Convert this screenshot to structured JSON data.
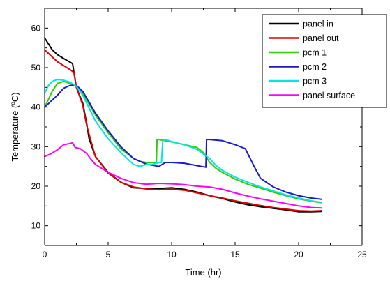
{
  "chart_data": {
    "type": "line",
    "title": "",
    "xlabel": "Time (hr)",
    "ylabel_parts": [
      "Temperature (",
      "o",
      "C)"
    ],
    "xlim": [
      0,
      25
    ],
    "ylim": [
      5,
      65
    ],
    "xticks": [
      0,
      5,
      10,
      15,
      20,
      25
    ],
    "yticks": [
      10,
      20,
      30,
      40,
      50,
      60
    ],
    "grid": false,
    "legend_position": "top-right",
    "series": [
      {
        "name": "panel in",
        "color": "#000000",
        "points": [
          [
            0,
            57.5
          ],
          [
            0.3,
            56
          ],
          [
            0.6,
            54.5
          ],
          [
            1,
            53.3
          ],
          [
            1.5,
            52.3
          ],
          [
            2,
            51.4
          ],
          [
            2.2,
            51
          ],
          [
            2.5,
            45
          ],
          [
            3,
            41
          ],
          [
            3.3,
            36
          ],
          [
            3.5,
            32
          ],
          [
            4,
            27.5
          ],
          [
            5,
            23.5
          ],
          [
            6,
            21
          ],
          [
            7,
            19.6
          ],
          [
            8,
            19.4
          ],
          [
            9,
            19.4
          ],
          [
            10,
            19.6
          ],
          [
            11,
            19.2
          ],
          [
            12,
            18.5
          ],
          [
            13,
            17.6
          ],
          [
            14,
            16.9
          ],
          [
            15,
            16
          ],
          [
            16,
            15.3
          ],
          [
            17,
            14.8
          ],
          [
            18,
            14.4
          ],
          [
            19,
            14
          ],
          [
            20,
            13.5
          ],
          [
            21,
            13.5
          ],
          [
            21.8,
            13.6
          ]
        ]
      },
      {
        "name": "panel out",
        "color": "#e00000",
        "points": [
          [
            0,
            54.5
          ],
          [
            0.5,
            53
          ],
          [
            1,
            51.5
          ],
          [
            1.5,
            50.5
          ],
          [
            2,
            49.5
          ],
          [
            2.3,
            48.8
          ],
          [
            2.5,
            45
          ],
          [
            3,
            40.5
          ],
          [
            3.3,
            35.5
          ],
          [
            3.6,
            32
          ],
          [
            4,
            27.5
          ],
          [
            5,
            23.3
          ],
          [
            6,
            21
          ],
          [
            7,
            19.8
          ],
          [
            8,
            19.3
          ],
          [
            9,
            19.1
          ],
          [
            10,
            19.2
          ],
          [
            11,
            19
          ],
          [
            12,
            18.3
          ],
          [
            13,
            17.6
          ],
          [
            14,
            17
          ],
          [
            15,
            16.3
          ],
          [
            16,
            15.7
          ],
          [
            17,
            15.1
          ],
          [
            18,
            14.6
          ],
          [
            19,
            14.2
          ],
          [
            20,
            13.8
          ],
          [
            21,
            13.7
          ],
          [
            21.8,
            13.8
          ]
        ]
      },
      {
        "name": "pcm 1",
        "color": "#33cc00",
        "points": [
          [
            0,
            40
          ],
          [
            0.3,
            42
          ],
          [
            0.6,
            44
          ],
          [
            1,
            46
          ],
          [
            1.5,
            46.5
          ],
          [
            2,
            46
          ],
          [
            2.5,
            45.5
          ],
          [
            3,
            43.5
          ],
          [
            4,
            38
          ],
          [
            5,
            33.5
          ],
          [
            6,
            29.5
          ],
          [
            7,
            27
          ],
          [
            7.5,
            26.3
          ],
          [
            8,
            26
          ],
          [
            8.5,
            26
          ],
          [
            8.8,
            26
          ],
          [
            8.85,
            31.8
          ],
          [
            9,
            31.8
          ],
          [
            10,
            31.2
          ],
          [
            11,
            30.5
          ],
          [
            12,
            29.8
          ],
          [
            12.5,
            28.5
          ],
          [
            13,
            26
          ],
          [
            13.5,
            24.5
          ],
          [
            14,
            23.5
          ],
          [
            15,
            21.8
          ],
          [
            16,
            20.5
          ],
          [
            17,
            19.5
          ],
          [
            18,
            18.5
          ],
          [
            19,
            17.6
          ],
          [
            20,
            16.8
          ],
          [
            21,
            16.2
          ],
          [
            21.8,
            15.8
          ]
        ]
      },
      {
        "name": "pcm 2",
        "color": "#1a1acc",
        "points": [
          [
            0,
            40
          ],
          [
            0.5,
            41.5
          ],
          [
            1,
            43
          ],
          [
            1.5,
            44.8
          ],
          [
            2,
            45.5
          ],
          [
            2.5,
            45.5
          ],
          [
            3,
            44
          ],
          [
            4,
            38.5
          ],
          [
            5,
            34
          ],
          [
            6,
            30
          ],
          [
            7,
            27
          ],
          [
            8,
            25.6
          ],
          [
            9,
            25
          ],
          [
            9.5,
            26
          ],
          [
            10,
            26
          ],
          [
            11,
            25.8
          ],
          [
            12,
            25.2
          ],
          [
            12.7,
            24.8
          ],
          [
            12.75,
            31.8
          ],
          [
            13,
            31.8
          ],
          [
            14,
            31.5
          ],
          [
            15,
            30.5
          ],
          [
            15.8,
            29.5
          ],
          [
            16.5,
            25
          ],
          [
            17,
            22
          ],
          [
            18,
            19.8
          ],
          [
            19,
            18.5
          ],
          [
            20,
            17.6
          ],
          [
            21,
            17
          ],
          [
            21.8,
            16.7
          ]
        ]
      },
      {
        "name": "pcm 3",
        "color": "#00e5e5",
        "points": [
          [
            0,
            43.5
          ],
          [
            0.3,
            45.5
          ],
          [
            0.6,
            46.5
          ],
          [
            1,
            47
          ],
          [
            1.5,
            46.8
          ],
          [
            2,
            46.3
          ],
          [
            2.5,
            45.3
          ],
          [
            3,
            43
          ],
          [
            4,
            36.5
          ],
          [
            5,
            32
          ],
          [
            6,
            28.5
          ],
          [
            7,
            25.5
          ],
          [
            7.5,
            25
          ],
          [
            8,
            25.5
          ],
          [
            8.5,
            25.5
          ],
          [
            9,
            26
          ],
          [
            9.2,
            26
          ],
          [
            9.3,
            31.5
          ],
          [
            9.5,
            31.8
          ],
          [
            10,
            31.3
          ],
          [
            11,
            30.5
          ],
          [
            12,
            29.3
          ],
          [
            13,
            27
          ],
          [
            13.5,
            25.2
          ],
          [
            14,
            24
          ],
          [
            15,
            22.3
          ],
          [
            16,
            21
          ],
          [
            17,
            19.8
          ],
          [
            18,
            18.8
          ],
          [
            19,
            17.8
          ],
          [
            20,
            17
          ],
          [
            21,
            16.3
          ],
          [
            21.8,
            15.9
          ]
        ]
      },
      {
        "name": "panel surface",
        "color": "#ff00ff",
        "points": [
          [
            0,
            27.5
          ],
          [
            0.5,
            28.2
          ],
          [
            1,
            29.2
          ],
          [
            1.5,
            30.5
          ],
          [
            2,
            30.8
          ],
          [
            2.2,
            31
          ],
          [
            2.4,
            29.8
          ],
          [
            2.8,
            29.5
          ],
          [
            3.3,
            28.3
          ],
          [
            3.6,
            27
          ],
          [
            4,
            25.5
          ],
          [
            5,
            23.5
          ],
          [
            6,
            22
          ],
          [
            7,
            20.9
          ],
          [
            8,
            20.5
          ],
          [
            9,
            20.7
          ],
          [
            10,
            20.6
          ],
          [
            11,
            20.4
          ],
          [
            12,
            20
          ],
          [
            13,
            19.8
          ],
          [
            14,
            19.2
          ],
          [
            15,
            18.3
          ],
          [
            16,
            17.5
          ],
          [
            17,
            16.8
          ],
          [
            18,
            16.2
          ],
          [
            19,
            15.6
          ],
          [
            20,
            15
          ],
          [
            21,
            14.6
          ],
          [
            21.8,
            14.5
          ]
        ]
      }
    ]
  }
}
